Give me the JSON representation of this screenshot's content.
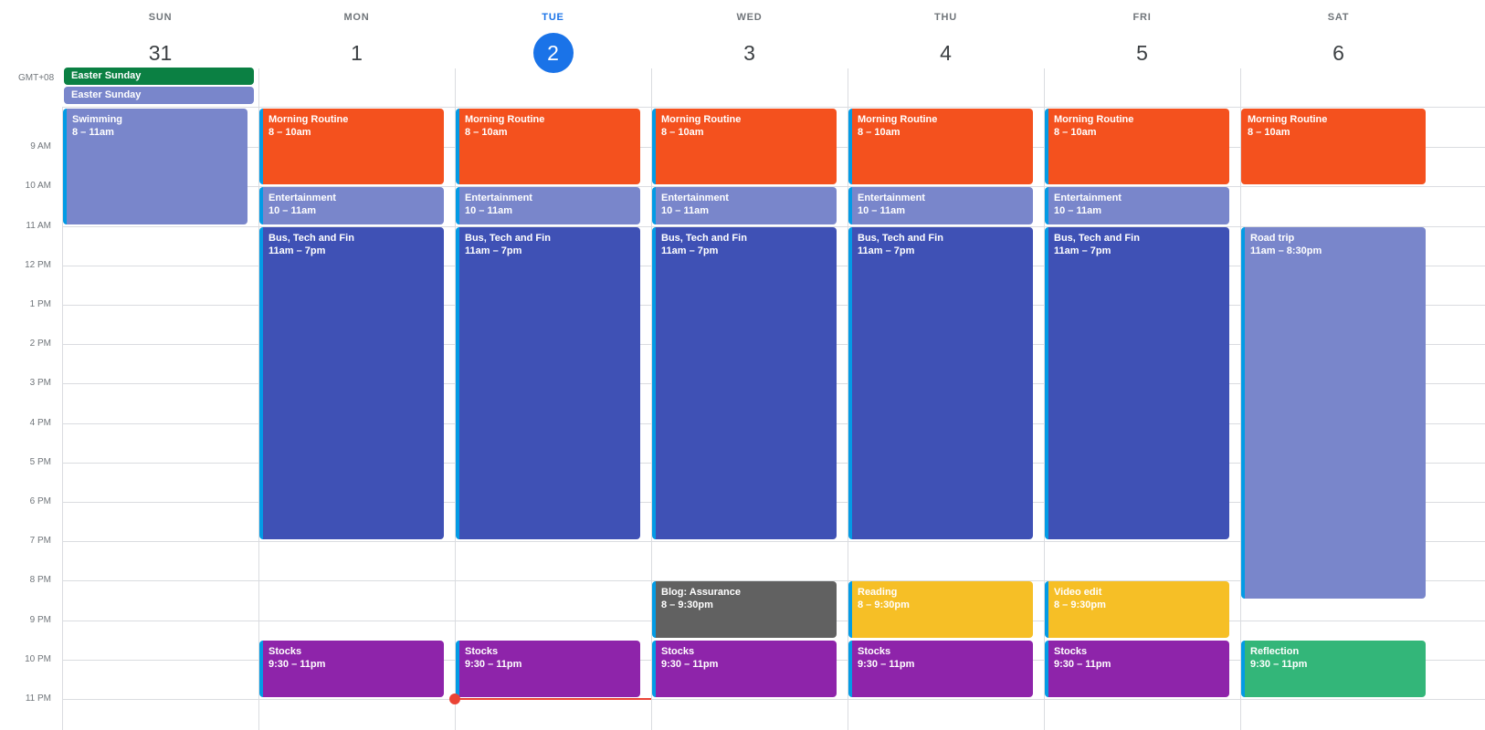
{
  "timezone": "GMT+08",
  "days": [
    {
      "name": "SUN",
      "num": "31",
      "today": false
    },
    {
      "name": "MON",
      "num": "1",
      "today": false
    },
    {
      "name": "TUE",
      "num": "2",
      "today": true
    },
    {
      "name": "WED",
      "num": "3",
      "today": false
    },
    {
      "name": "THU",
      "num": "4",
      "today": false
    },
    {
      "name": "FRI",
      "num": "5",
      "today": false
    },
    {
      "name": "SAT",
      "num": "6",
      "today": false
    }
  ],
  "all_day": [
    {
      "title": "Easter Sunday",
      "day": 0,
      "color": "#0b8043"
    },
    {
      "title": "Easter Sunday",
      "day": 0,
      "color": "#7986cb"
    }
  ],
  "hours": [
    "9 AM",
    "10 AM",
    "11 AM",
    "12 PM",
    "1 PM",
    "2 PM",
    "3 PM",
    "4 PM",
    "5 PM",
    "6 PM",
    "7 PM",
    "8 PM",
    "9 PM",
    "10 PM",
    "11 PM"
  ],
  "events": [
    {
      "day": 0,
      "title": "Swimming",
      "time": "8 – 11am",
      "start": 8,
      "end": 11,
      "color": "#7986cb",
      "stripe": true
    },
    {
      "day": 1,
      "title": "Morning Routine",
      "time": "8 – 10am",
      "start": 8,
      "end": 10,
      "color": "#f4511e",
      "stripe": true
    },
    {
      "day": 1,
      "title": "Entertainment",
      "time": "10 – 11am",
      "start": 10,
      "end": 11,
      "color": "#7986cb",
      "stripe": true
    },
    {
      "day": 1,
      "title": "Bus, Tech and Fin",
      "time": "11am – 7pm",
      "start": 11,
      "end": 19,
      "color": "#3f51b5",
      "stripe": true
    },
    {
      "day": 1,
      "title": "Stocks",
      "time": "9:30 – 11pm",
      "start": 21.5,
      "end": 23,
      "color": "#8e24aa",
      "stripe": true
    },
    {
      "day": 2,
      "title": "Morning Routine",
      "time": "8 – 10am",
      "start": 8,
      "end": 10,
      "color": "#f4511e",
      "stripe": true
    },
    {
      "day": 2,
      "title": "Entertainment",
      "time": "10 – 11am",
      "start": 10,
      "end": 11,
      "color": "#7986cb",
      "stripe": true
    },
    {
      "day": 2,
      "title": "Bus, Tech and Fin",
      "time": "11am – 7pm",
      "start": 11,
      "end": 19,
      "color": "#3f51b5",
      "stripe": true
    },
    {
      "day": 2,
      "title": "Stocks",
      "time": "9:30 – 11pm",
      "start": 21.5,
      "end": 23,
      "color": "#8e24aa",
      "stripe": true
    },
    {
      "day": 3,
      "title": "Morning Routine",
      "time": "8 – 10am",
      "start": 8,
      "end": 10,
      "color": "#f4511e",
      "stripe": true
    },
    {
      "day": 3,
      "title": "Entertainment",
      "time": "10 – 11am",
      "start": 10,
      "end": 11,
      "color": "#7986cb",
      "stripe": true
    },
    {
      "day": 3,
      "title": "Bus, Tech and Fin",
      "time": "11am – 7pm",
      "start": 11,
      "end": 19,
      "color": "#3f51b5",
      "stripe": true
    },
    {
      "day": 3,
      "title": "Blog: Assurance",
      "time": "8 – 9:30pm",
      "start": 20,
      "end": 21.5,
      "color": "#616161",
      "stripe": true
    },
    {
      "day": 3,
      "title": "Stocks",
      "time": "9:30 – 11pm",
      "start": 21.5,
      "end": 23,
      "color": "#8e24aa",
      "stripe": true
    },
    {
      "day": 4,
      "title": "Morning Routine",
      "time": "8 – 10am",
      "start": 8,
      "end": 10,
      "color": "#f4511e",
      "stripe": true
    },
    {
      "day": 4,
      "title": "Entertainment",
      "time": "10 – 11am",
      "start": 10,
      "end": 11,
      "color": "#7986cb",
      "stripe": true
    },
    {
      "day": 4,
      "title": "Bus, Tech and Fin",
      "time": "11am – 7pm",
      "start": 11,
      "end": 19,
      "color": "#3f51b5",
      "stripe": true
    },
    {
      "day": 4,
      "title": "Reading",
      "time": "8 – 9:30pm",
      "start": 20,
      "end": 21.5,
      "color": "#f6bf26",
      "stripe": true
    },
    {
      "day": 4,
      "title": "Stocks",
      "time": "9:30 – 11pm",
      "start": 21.5,
      "end": 23,
      "color": "#8e24aa",
      "stripe": true
    },
    {
      "day": 5,
      "title": "Morning Routine",
      "time": "8 – 10am",
      "start": 8,
      "end": 10,
      "color": "#f4511e",
      "stripe": true
    },
    {
      "day": 5,
      "title": "Entertainment",
      "time": "10 – 11am",
      "start": 10,
      "end": 11,
      "color": "#7986cb",
      "stripe": true
    },
    {
      "day": 5,
      "title": "Bus, Tech and Fin",
      "time": "11am – 7pm",
      "start": 11,
      "end": 19,
      "color": "#3f51b5",
      "stripe": true
    },
    {
      "day": 5,
      "title": "Video edit",
      "time": "8 – 9:30pm",
      "start": 20,
      "end": 21.5,
      "color": "#f6bf26",
      "stripe": true
    },
    {
      "day": 5,
      "title": "Stocks",
      "time": "9:30 – 11pm",
      "start": 21.5,
      "end": 23,
      "color": "#8e24aa",
      "stripe": true
    },
    {
      "day": 6,
      "title": "Morning Routine",
      "time": "8 – 10am",
      "start": 8,
      "end": 10,
      "color": "#f4511e",
      "stripe": false
    },
    {
      "day": 6,
      "title": "Road trip",
      "time": "11am – 8:30pm",
      "start": 11,
      "end": 20.5,
      "color": "#7986cb",
      "stripe": true
    },
    {
      "day": 6,
      "title": "Reflection",
      "time": "9:30 – 11pm",
      "start": 21.5,
      "end": 23,
      "color": "#33b679",
      "stripe": true
    }
  ],
  "now_time": 23,
  "now_day": 2
}
